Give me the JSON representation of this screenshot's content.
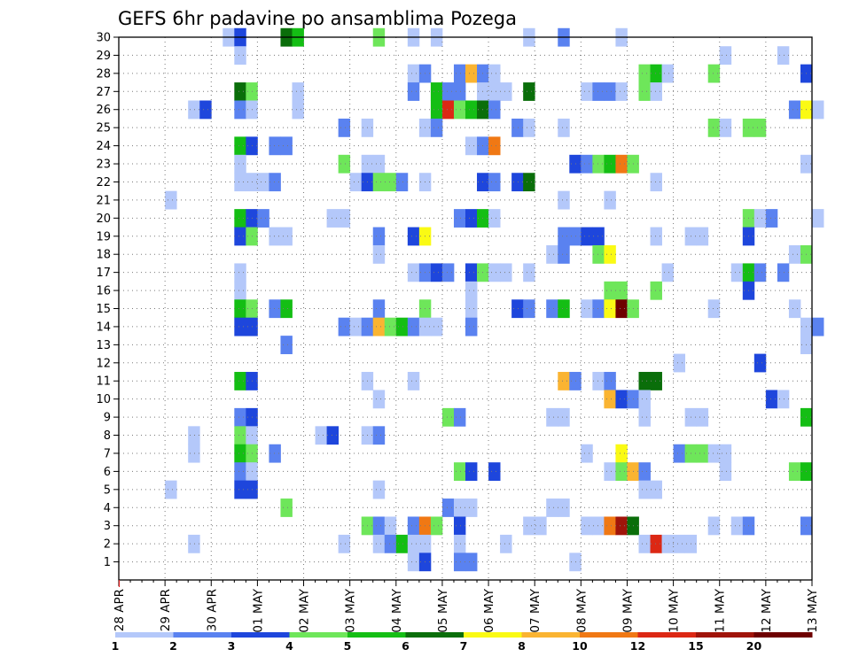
{
  "chart_data": {
    "type": "heatmap",
    "title": "GEFS 6hr padavine po ansamblima Pozega",
    "x_tick_labels": [
      "28 APR",
      "29 APR",
      "30 APR",
      "01 MAY",
      "02 MAY",
      "03 MAY",
      "04 MAY",
      "05 MAY",
      "06 MAY",
      "07 MAY",
      "08 MAY",
      "09 MAY",
      "10 MAY",
      "11 MAY",
      "12 MAY",
      "13 MAY"
    ],
    "y_tick_labels": [
      "1",
      "2",
      "3",
      "4",
      "5",
      "6",
      "7",
      "8",
      "9",
      "10",
      "11",
      "12",
      "13",
      "14",
      "15",
      "16",
      "17",
      "18",
      "19",
      "20",
      "21",
      "22",
      "23",
      "24",
      "25",
      "26",
      "27",
      "28",
      "29",
      "30"
    ],
    "x_range": [
      "28 APR 00",
      "13 MAY 00"
    ],
    "step_hours": 6,
    "ylim": [
      0,
      30
    ],
    "grid": true,
    "legend_bounds": [
      "1",
      "2",
      "3",
      "4",
      "5",
      "6",
      "7",
      "8",
      "10",
      "12",
      "15",
      "20"
    ],
    "legend_colors": [
      "#b4c8fa",
      "#5a82f0",
      "#1e46dc",
      "#6ee65a",
      "#14be14",
      "#0a6e0a",
      "#fafa14",
      "#fab432",
      "#f07814",
      "#dc2814",
      "#a0140a",
      "#6e0000"
    ],
    "cells": [
      [
        30,
        [
          [
            9,
            0
          ],
          [
            10,
            2
          ],
          [
            14,
            5
          ],
          [
            15,
            4
          ],
          [
            22,
            3
          ],
          [
            25,
            0
          ],
          [
            27,
            0
          ],
          [
            35,
            0
          ],
          [
            38,
            1
          ],
          [
            43,
            0
          ]
        ]
      ],
      [
        29,
        [
          [
            10,
            0
          ],
          [
            52,
            0
          ],
          [
            57,
            0
          ]
        ]
      ],
      [
        28,
        [
          [
            25,
            0
          ],
          [
            26,
            1
          ],
          [
            29,
            1
          ],
          [
            30,
            7
          ],
          [
            31,
            1
          ],
          [
            32,
            0
          ],
          [
            45,
            3
          ],
          [
            46,
            4
          ],
          [
            47,
            0
          ],
          [
            51,
            3
          ],
          [
            59,
            2
          ]
        ]
      ],
      [
        27,
        [
          [
            10,
            5
          ],
          [
            11,
            3
          ],
          [
            15,
            0
          ],
          [
            25,
            1
          ],
          [
            27,
            4
          ],
          [
            28,
            1
          ],
          [
            29,
            1
          ],
          [
            31,
            0
          ],
          [
            32,
            0
          ],
          [
            33,
            0
          ],
          [
            35,
            5
          ],
          [
            40,
            0
          ],
          [
            41,
            1
          ],
          [
            42,
            1
          ],
          [
            43,
            0
          ],
          [
            45,
            3
          ],
          [
            46,
            0
          ]
        ]
      ],
      [
        26,
        [
          [
            6,
            0
          ],
          [
            7,
            2
          ],
          [
            10,
            1
          ],
          [
            11,
            0
          ],
          [
            15,
            0
          ],
          [
            27,
            4
          ],
          [
            28,
            9
          ],
          [
            29,
            3
          ],
          [
            30,
            4
          ],
          [
            31,
            5
          ],
          [
            32,
            1
          ],
          [
            58,
            1
          ],
          [
            59,
            6
          ],
          [
            60,
            0
          ]
        ]
      ],
      [
        25,
        [
          [
            19,
            1
          ],
          [
            21,
            0
          ],
          [
            26,
            0
          ],
          [
            27,
            1
          ],
          [
            34,
            1
          ],
          [
            35,
            0
          ],
          [
            38,
            0
          ],
          [
            51,
            3
          ],
          [
            52,
            0
          ],
          [
            54,
            3
          ],
          [
            55,
            3
          ]
        ]
      ],
      [
        24,
        [
          [
            10,
            4
          ],
          [
            11,
            2
          ],
          [
            13,
            1
          ],
          [
            14,
            1
          ],
          [
            30,
            0
          ],
          [
            31,
            1
          ],
          [
            32,
            8
          ]
        ]
      ],
      [
        23,
        [
          [
            10,
            0
          ],
          [
            19,
            3
          ],
          [
            21,
            0
          ],
          [
            22,
            0
          ],
          [
            39,
            2
          ],
          [
            40,
            1
          ],
          [
            41,
            3
          ],
          [
            42,
            4
          ],
          [
            43,
            8
          ],
          [
            44,
            3
          ],
          [
            59,
            0
          ]
        ]
      ],
      [
        22,
        [
          [
            10,
            0
          ],
          [
            11,
            0
          ],
          [
            12,
            0
          ],
          [
            13,
            1
          ],
          [
            20,
            0
          ],
          [
            21,
            2
          ],
          [
            22,
            3
          ],
          [
            23,
            3
          ],
          [
            24,
            1
          ],
          [
            26,
            0
          ],
          [
            31,
            2
          ],
          [
            32,
            1
          ],
          [
            34,
            2
          ],
          [
            35,
            5
          ],
          [
            46,
            0
          ]
        ]
      ],
      [
        21,
        [
          [
            4,
            0
          ],
          [
            38,
            0
          ],
          [
            42,
            0
          ]
        ]
      ],
      [
        20,
        [
          [
            10,
            4
          ],
          [
            11,
            2
          ],
          [
            12,
            1
          ],
          [
            18,
            0
          ],
          [
            19,
            0
          ],
          [
            29,
            1
          ],
          [
            30,
            2
          ],
          [
            31,
            4
          ],
          [
            32,
            0
          ],
          [
            54,
            3
          ],
          [
            55,
            0
          ],
          [
            56,
            1
          ],
          [
            60,
            0
          ]
        ]
      ],
      [
        19,
        [
          [
            10,
            2
          ],
          [
            11,
            3
          ],
          [
            13,
            0
          ],
          [
            14,
            0
          ],
          [
            22,
            1
          ],
          [
            25,
            2
          ],
          [
            26,
            6
          ],
          [
            38,
            1
          ],
          [
            39,
            1
          ],
          [
            40,
            2
          ],
          [
            41,
            2
          ],
          [
            46,
            0
          ],
          [
            49,
            0
          ],
          [
            50,
            0
          ],
          [
            54,
            2
          ]
        ]
      ],
      [
        18,
        [
          [
            22,
            0
          ],
          [
            37,
            0
          ],
          [
            38,
            1
          ],
          [
            41,
            3
          ],
          [
            42,
            6
          ],
          [
            58,
            0
          ],
          [
            59,
            3
          ]
        ]
      ],
      [
        17,
        [
          [
            10,
            0
          ],
          [
            25,
            0
          ],
          [
            26,
            1
          ],
          [
            27,
            2
          ],
          [
            28,
            1
          ],
          [
            30,
            2
          ],
          [
            31,
            3
          ],
          [
            32,
            0
          ],
          [
            33,
            0
          ],
          [
            35,
            0
          ],
          [
            47,
            0
          ],
          [
            53,
            0
          ],
          [
            54,
            4
          ],
          [
            55,
            1
          ],
          [
            57,
            1
          ]
        ]
      ],
      [
        16,
        [
          [
            10,
            0
          ],
          [
            30,
            0
          ],
          [
            42,
            3
          ],
          [
            43,
            3
          ],
          [
            46,
            3
          ],
          [
            54,
            2
          ]
        ]
      ],
      [
        15,
        [
          [
            10,
            4
          ],
          [
            11,
            3
          ],
          [
            13,
            1
          ],
          [
            14,
            4
          ],
          [
            22,
            1
          ],
          [
            26,
            3
          ],
          [
            30,
            0
          ],
          [
            34,
            2
          ],
          [
            35,
            1
          ],
          [
            37,
            1
          ],
          [
            38,
            4
          ],
          [
            40,
            0
          ],
          [
            41,
            1
          ],
          [
            42,
            6
          ],
          [
            43,
            11
          ],
          [
            44,
            3
          ],
          [
            51,
            0
          ],
          [
            58,
            0
          ]
        ]
      ],
      [
        14,
        [
          [
            10,
            2
          ],
          [
            11,
            2
          ],
          [
            19,
            1
          ],
          [
            20,
            0
          ],
          [
            21,
            1
          ],
          [
            22,
            7
          ],
          [
            23,
            3
          ],
          [
            24,
            4
          ],
          [
            25,
            1
          ],
          [
            26,
            0
          ],
          [
            27,
            0
          ],
          [
            30,
            1
          ],
          [
            59,
            0
          ],
          [
            60,
            1
          ]
        ]
      ],
      [
        13,
        [
          [
            14,
            1
          ],
          [
            59,
            0
          ]
        ]
      ],
      [
        12,
        [
          [
            48,
            0
          ],
          [
            55,
            2
          ]
        ]
      ],
      [
        11,
        [
          [
            10,
            4
          ],
          [
            11,
            2
          ],
          [
            21,
            0
          ],
          [
            25,
            0
          ],
          [
            38,
            7
          ],
          [
            39,
            1
          ],
          [
            41,
            0
          ],
          [
            42,
            1
          ],
          [
            45,
            5
          ],
          [
            46,
            5
          ]
        ]
      ],
      [
        10,
        [
          [
            22,
            0
          ],
          [
            42,
            7
          ],
          [
            43,
            2
          ],
          [
            44,
            1
          ],
          [
            45,
            0
          ],
          [
            56,
            2
          ],
          [
            57,
            0
          ]
        ]
      ],
      [
        9,
        [
          [
            10,
            1
          ],
          [
            11,
            2
          ],
          [
            28,
            3
          ],
          [
            29,
            1
          ],
          [
            37,
            0
          ],
          [
            38,
            0
          ],
          [
            45,
            0
          ],
          [
            49,
            0
          ],
          [
            50,
            0
          ],
          [
            59,
            4
          ]
        ]
      ],
      [
        8,
        [
          [
            6,
            0
          ],
          [
            10,
            3
          ],
          [
            11,
            0
          ],
          [
            17,
            0
          ],
          [
            18,
            2
          ],
          [
            21,
            0
          ],
          [
            22,
            1
          ]
        ]
      ],
      [
        7,
        [
          [
            6,
            0
          ],
          [
            10,
            4
          ],
          [
            11,
            3
          ],
          [
            13,
            1
          ],
          [
            40,
            0
          ],
          [
            43,
            6
          ],
          [
            48,
            1
          ],
          [
            49,
            3
          ],
          [
            50,
            3
          ],
          [
            51,
            0
          ],
          [
            52,
            0
          ]
        ]
      ],
      [
        6,
        [
          [
            10,
            1
          ],
          [
            11,
            0
          ],
          [
            29,
            3
          ],
          [
            30,
            2
          ],
          [
            32,
            2
          ],
          [
            42,
            0
          ],
          [
            43,
            3
          ],
          [
            44,
            7
          ],
          [
            45,
            1
          ],
          [
            52,
            0
          ],
          [
            58,
            3
          ],
          [
            59,
            4
          ]
        ]
      ],
      [
        5,
        [
          [
            4,
            0
          ],
          [
            10,
            2
          ],
          [
            11,
            2
          ],
          [
            22,
            0
          ],
          [
            45,
            0
          ],
          [
            46,
            0
          ]
        ]
      ],
      [
        4,
        [
          [
            14,
            3
          ],
          [
            28,
            1
          ],
          [
            29,
            0
          ],
          [
            30,
            0
          ],
          [
            37,
            0
          ],
          [
            38,
            0
          ]
        ]
      ],
      [
        3,
        [
          [
            21,
            3
          ],
          [
            22,
            1
          ],
          [
            23,
            0
          ],
          [
            25,
            1
          ],
          [
            26,
            8
          ],
          [
            27,
            3
          ],
          [
            29,
            2
          ],
          [
            35,
            0
          ],
          [
            36,
            0
          ],
          [
            40,
            0
          ],
          [
            41,
            0
          ],
          [
            42,
            8
          ],
          [
            43,
            10
          ],
          [
            44,
            5
          ],
          [
            51,
            0
          ],
          [
            53,
            0
          ],
          [
            54,
            1
          ],
          [
            59,
            1
          ]
        ]
      ],
      [
        2,
        [
          [
            6,
            0
          ],
          [
            19,
            0
          ],
          [
            22,
            0
          ],
          [
            23,
            1
          ],
          [
            24,
            4
          ],
          [
            25,
            0
          ],
          [
            26,
            0
          ],
          [
            29,
            0
          ],
          [
            33,
            0
          ],
          [
            45,
            0
          ],
          [
            46,
            9
          ],
          [
            47,
            0
          ],
          [
            48,
            0
          ],
          [
            49,
            0
          ]
        ]
      ],
      [
        1,
        [
          [
            25,
            0
          ],
          [
            26,
            2
          ],
          [
            29,
            1
          ],
          [
            30,
            1
          ],
          [
            39,
            0
          ]
        ]
      ]
    ]
  }
}
